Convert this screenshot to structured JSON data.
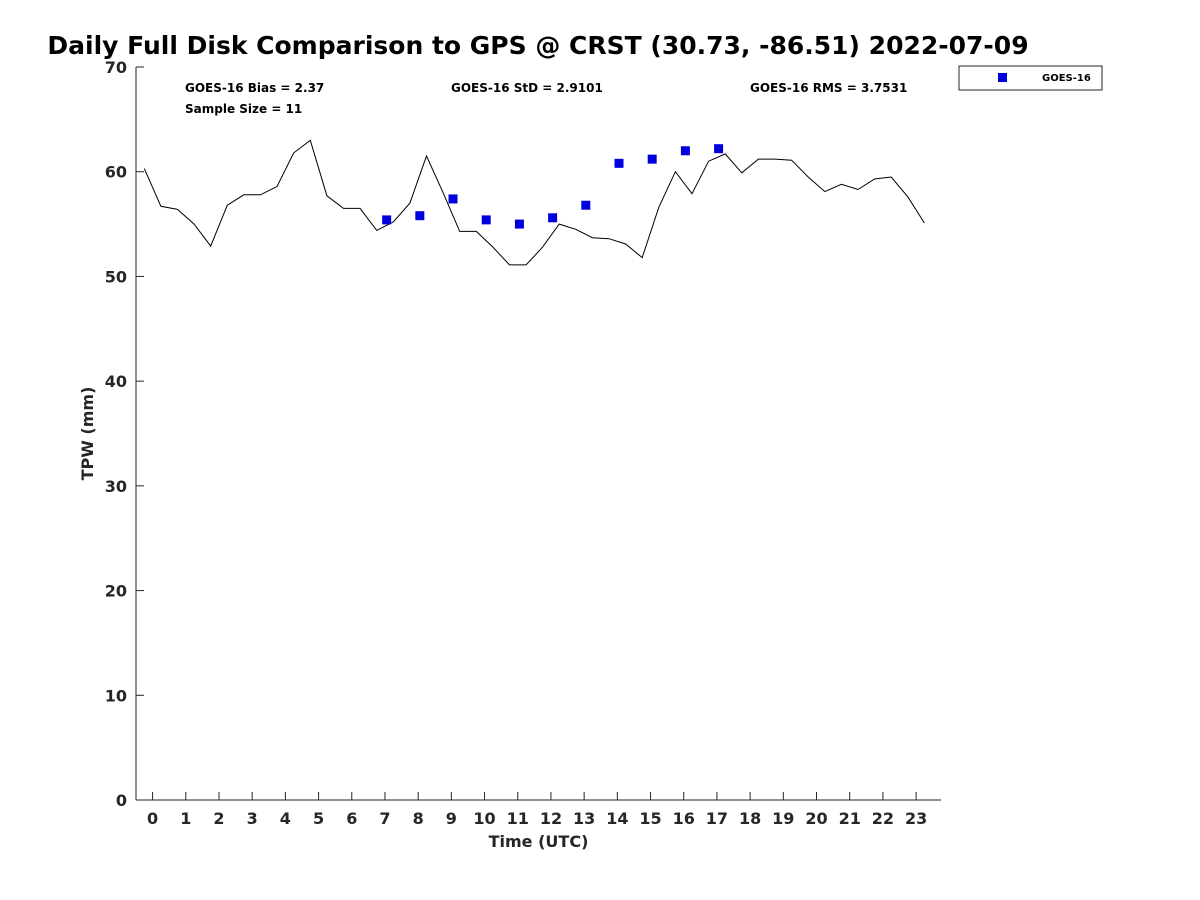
{
  "chart_data": {
    "type": "scatter",
    "title": "Daily Full Disk Comparison to GPS @ CRST (30.73, -86.51) 2022-07-09",
    "xlabel": "Time (UTC)",
    "ylabel": "TPW (mm)",
    "xlim": [
      -0.5,
      23.75
    ],
    "ylim": [
      0,
      70
    ],
    "x_ticks": [
      0,
      1,
      2,
      3,
      4,
      5,
      6,
      7,
      8,
      9,
      10,
      11,
      12,
      13,
      14,
      15,
      16,
      17,
      18,
      19,
      20,
      21,
      22,
      23
    ],
    "y_ticks": [
      0,
      10,
      20,
      30,
      40,
      50,
      60,
      70
    ],
    "grid": false,
    "legend_position": "outside-top-right",
    "stats": {
      "bias": "GOES-16 Bias = 2.37",
      "std": "GOES-16 StD = 2.9101",
      "rms": "GOES-16 RMS = 3.7531",
      "sample_size": "Sample Size = 11"
    },
    "series": [
      {
        "name": "GOES-16",
        "kind": "scatter",
        "marker": "square",
        "color": "#0000dd",
        "x": [
          7.05,
          8.05,
          9.05,
          10.05,
          11.05,
          12.05,
          13.05,
          14.05,
          15.05,
          16.05,
          17.05
        ],
        "y": [
          55.4,
          55.8,
          57.4,
          55.4,
          55.0,
          55.6,
          56.8,
          60.8,
          61.2,
          62.0,
          62.2
        ]
      },
      {
        "kind": "line",
        "color": "#000000",
        "x": [
          -0.25,
          0.25,
          0.75,
          1.25,
          1.75,
          2.25,
          2.75,
          3.25,
          3.75,
          4.25,
          4.75,
          5.25,
          5.75,
          6.25,
          6.75,
          7.25,
          7.75,
          8.25,
          8.75,
          9.25,
          9.75,
          10.25,
          10.75,
          11.25,
          11.75,
          12.25,
          12.75,
          13.25,
          13.75,
          14.25,
          14.75,
          15.25,
          15.75,
          16.25,
          16.75,
          17.25,
          17.75,
          18.25,
          18.75,
          19.25,
          19.75,
          20.25,
          20.75,
          21.25,
          21.75,
          22.25,
          22.75,
          23.25
        ],
        "y": [
          60.3,
          56.7,
          56.4,
          55.0,
          52.9,
          56.8,
          57.8,
          57.8,
          58.6,
          61.8,
          63.0,
          57.7,
          56.5,
          56.5,
          54.4,
          55.2,
          57.0,
          61.5,
          58.0,
          54.3,
          54.3,
          52.8,
          51.1,
          51.1,
          52.8,
          55.0,
          54.5,
          53.7,
          53.6,
          53.1,
          51.8,
          56.6,
          60.0,
          57.9,
          61.0,
          61.7,
          59.9,
          61.2,
          61.2,
          61.1,
          59.5,
          58.1,
          58.8,
          58.3,
          59.3,
          59.5,
          57.6,
          55.1
        ]
      }
    ]
  }
}
